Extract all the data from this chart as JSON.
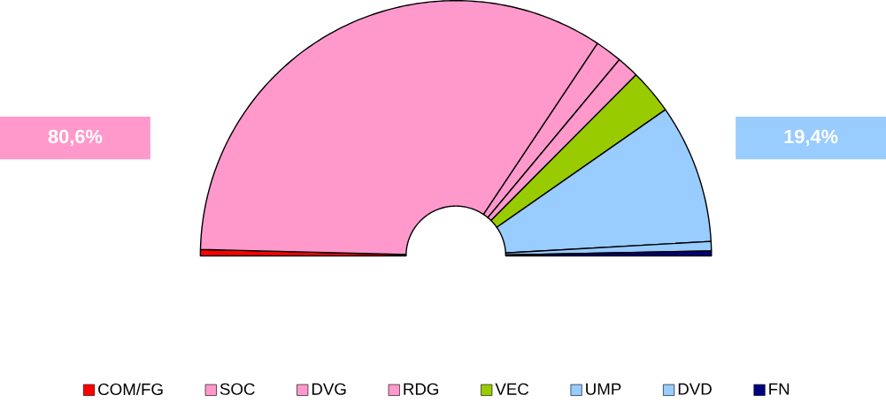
{
  "chart_data": {
    "type": "donut",
    "categories": [
      "COM/FG",
      "SOC",
      "DVG",
      "RDG",
      "VEC",
      "UMP",
      "DVD",
      "FN"
    ],
    "values": [
      0.8,
      67.9,
      3.4,
      2.8,
      5.7,
      17.6,
      1.2,
      0.6
    ],
    "colors": [
      "#ff0000",
      "#ff99cc",
      "#ff99cc",
      "#ff99cc",
      "#99cc00",
      "#99ccff",
      "#99ccff",
      "#000080"
    ],
    "annotations": [
      "80,6%",
      "19,4%"
    ],
    "legend": "bottom"
  }
}
